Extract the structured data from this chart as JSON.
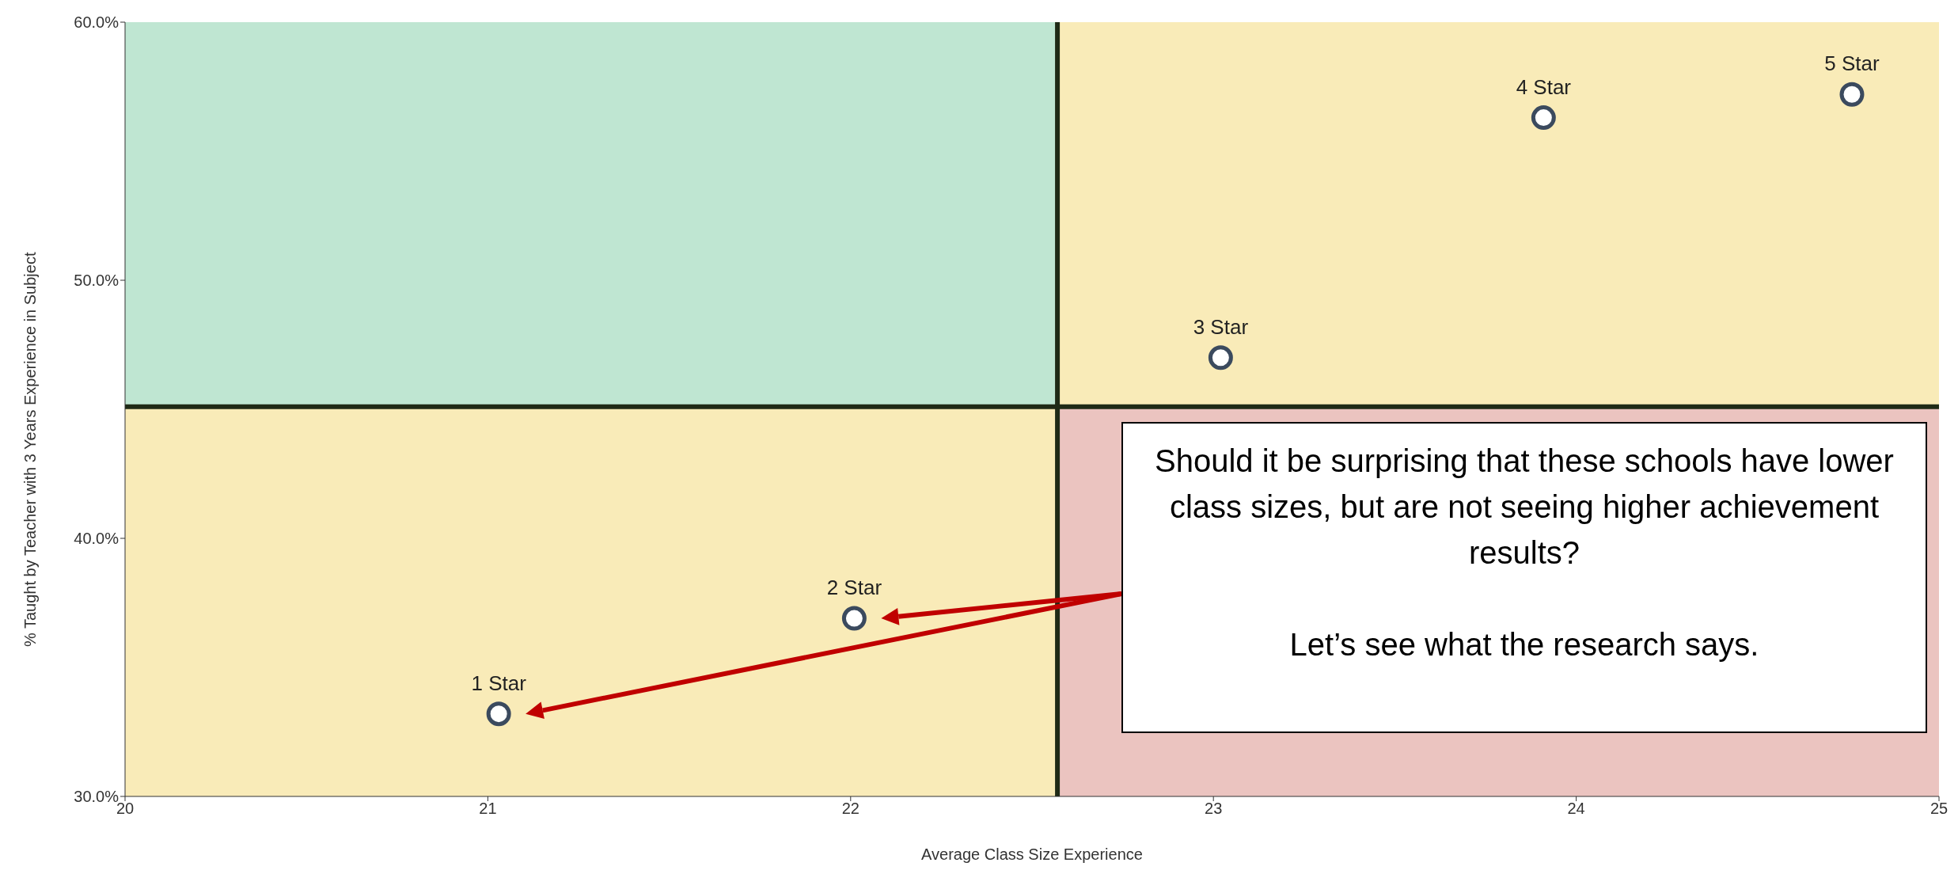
{
  "chart_data": {
    "type": "scatter",
    "xlabel": "Average Class Size Experience",
    "ylabel": "% Taught by Teacher with 3 Years Experience in Subject",
    "x": [
      21.03,
      22.01,
      23.02,
      23.91,
      24.76
    ],
    "series": [
      {
        "color": "#3b4a5e",
        "values": [
          33.2,
          36.9,
          47.0,
          56.3,
          57.2
        ]
      }
    ],
    "xlim": [
      20,
      25
    ],
    "xticks": [
      20,
      21,
      22,
      23,
      24,
      25
    ],
    "ylim": [
      30,
      60
    ],
    "yticks": [
      {
        "value": 30,
        "label": "30.0%"
      },
      {
        "value": 40,
        "label": "40.0%"
      },
      {
        "value": 50,
        "label": "50.0%"
      },
      {
        "value": 60,
        "label": "60.0%"
      }
    ],
    "ref_lines": [
      {
        "axis": "x",
        "value": 22.57,
        "color": "#1f2a16"
      },
      {
        "axis": "y",
        "value": 45.1,
        "color": "#1f2a16"
      }
    ],
    "annotations": [
      "Should it be surprising that these schools have lower class sizes, but are not seeing higher achievement results?\n\nLet’s see what the research says.",
      {
        "text": "1 Star",
        "x": 21.03,
        "y": 33.2
      },
      {
        "text": "2 Star",
        "x": 22.01,
        "y": 36.9
      },
      {
        "text": "3 Star",
        "x": 23.02,
        "y": 47.0
      },
      {
        "text": "4 Star",
        "x": 23.91,
        "y": 56.3
      },
      {
        "text": "5 Star",
        "x": 24.76,
        "y": 57.2
      }
    ],
    "marker": "circle",
    "grid": false,
    "legend": false
  }
}
